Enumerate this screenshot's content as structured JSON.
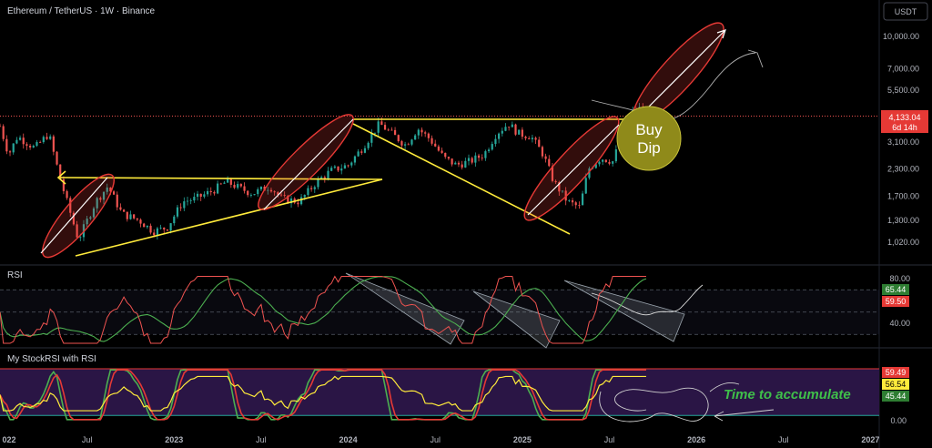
{
  "header": {
    "symbol_title": "Ethereum / TetherUS · 1W · Binance",
    "currency_button": "USDT"
  },
  "colors": {
    "background": "#000000",
    "up_candle": "#26a69a",
    "down_candle": "#ef5350",
    "annotation_red": "#e53935",
    "annotation_yellow": "#ffeb3b",
    "rsi_line": "#ef5350",
    "rsi_ma": "#4caf50",
    "stoch_k": "#4caf50",
    "stoch_d": "#e53935",
    "stoch_rsi": "#ffeb3b",
    "stoch_band": "#2d1a4a"
  },
  "annotations": {
    "buy_dip": [
      "Buy",
      "Dip"
    ],
    "accumulate": "Time to accumulate"
  },
  "chart_data": [
    {
      "type": "candlestick",
      "scale": "log",
      "y_axis_ticks": [
        "10,000.00",
        "7,000.00",
        "5,500.00",
        "4,133.04",
        "3,100.00",
        "2,300.00",
        "1,700.00",
        "1,300.00",
        "1,020.00"
      ],
      "y_tick_values": [
        10000,
        7000,
        5500,
        3100,
        2300,
        1700,
        1300,
        1020
      ],
      "x_axis_ticks": [
        "022",
        "Jul",
        "2023",
        "Jul",
        "2024",
        "Jul",
        "2025",
        "Jul",
        "2026",
        "Jul",
        "2027"
      ],
      "last_price": "4,133.04",
      "countdown": "6d 14h",
      "price_path": [
        [
          2022.0,
          3700
        ],
        [
          2022.05,
          2700
        ],
        [
          2022.1,
          3300
        ],
        [
          2022.2,
          2900
        ],
        [
          2022.28,
          3400
        ],
        [
          2022.35,
          2000
        ],
        [
          2022.45,
          1050
        ],
        [
          2022.55,
          1600
        ],
        [
          2022.62,
          1900
        ],
        [
          2022.7,
          1400
        ],
        [
          2022.8,
          1300
        ],
        [
          2022.88,
          1150
        ],
        [
          2022.96,
          1200
        ],
        [
          2023.05,
          1600
        ],
        [
          2023.12,
          1650
        ],
        [
          2023.22,
          1800
        ],
        [
          2023.3,
          2000
        ],
        [
          2023.38,
          1850
        ],
        [
          2023.45,
          1750
        ],
        [
          2023.55,
          1900
        ],
        [
          2023.62,
          1650
        ],
        [
          2023.72,
          1600
        ],
        [
          2023.82,
          2000
        ],
        [
          2023.9,
          2250
        ],
        [
          2024.0,
          2400
        ],
        [
          2024.08,
          2900
        ],
        [
          2024.18,
          3800
        ],
        [
          2024.25,
          3400
        ],
        [
          2024.33,
          3000
        ],
        [
          2024.4,
          3600
        ],
        [
          2024.47,
          3200
        ],
        [
          2024.55,
          2600
        ],
        [
          2024.62,
          2400
        ],
        [
          2024.7,
          2500
        ],
        [
          2024.78,
          2700
        ],
        [
          2024.85,
          3400
        ],
        [
          2024.92,
          3800
        ],
        [
          2024.98,
          3400
        ],
        [
          2025.05,
          3300
        ],
        [
          2025.12,
          2700
        ],
        [
          2025.18,
          2000
        ],
        [
          2025.26,
          1600
        ],
        [
          2025.33,
          1500
        ],
        [
          2025.38,
          2300
        ],
        [
          2025.45,
          2600
        ],
        [
          2025.52,
          2500
        ],
        [
          2025.58,
          3500
        ],
        [
          2025.63,
          4300
        ],
        [
          2025.68,
          4500
        ],
        [
          2025.72,
          4133
        ]
      ]
    },
    {
      "type": "line",
      "title": "RSI",
      "y_axis_ticks": [
        "80.00",
        "40.00"
      ],
      "y_tick_values": [
        80,
        40
      ],
      "level_lines": [
        70,
        50,
        30
      ],
      "series": [
        {
          "name": "",
          "role": "rsi",
          "current": "59.50"
        },
        {
          "name": "",
          "role": "rsi_ma",
          "current": "65.44"
        }
      ]
    },
    {
      "type": "line",
      "title": "My StockRSI with RSI",
      "y_axis_ticks": [
        "0.00"
      ],
      "y_tick_values": [
        0
      ],
      "band": [
        20,
        80
      ],
      "series": [
        {
          "name": "",
          "role": "stoch_d",
          "current": "59.49"
        },
        {
          "name": "",
          "role": "stoch_rsi",
          "current": "56.54"
        },
        {
          "name": "",
          "role": "stoch_k",
          "current": "45.44"
        }
      ]
    }
  ]
}
